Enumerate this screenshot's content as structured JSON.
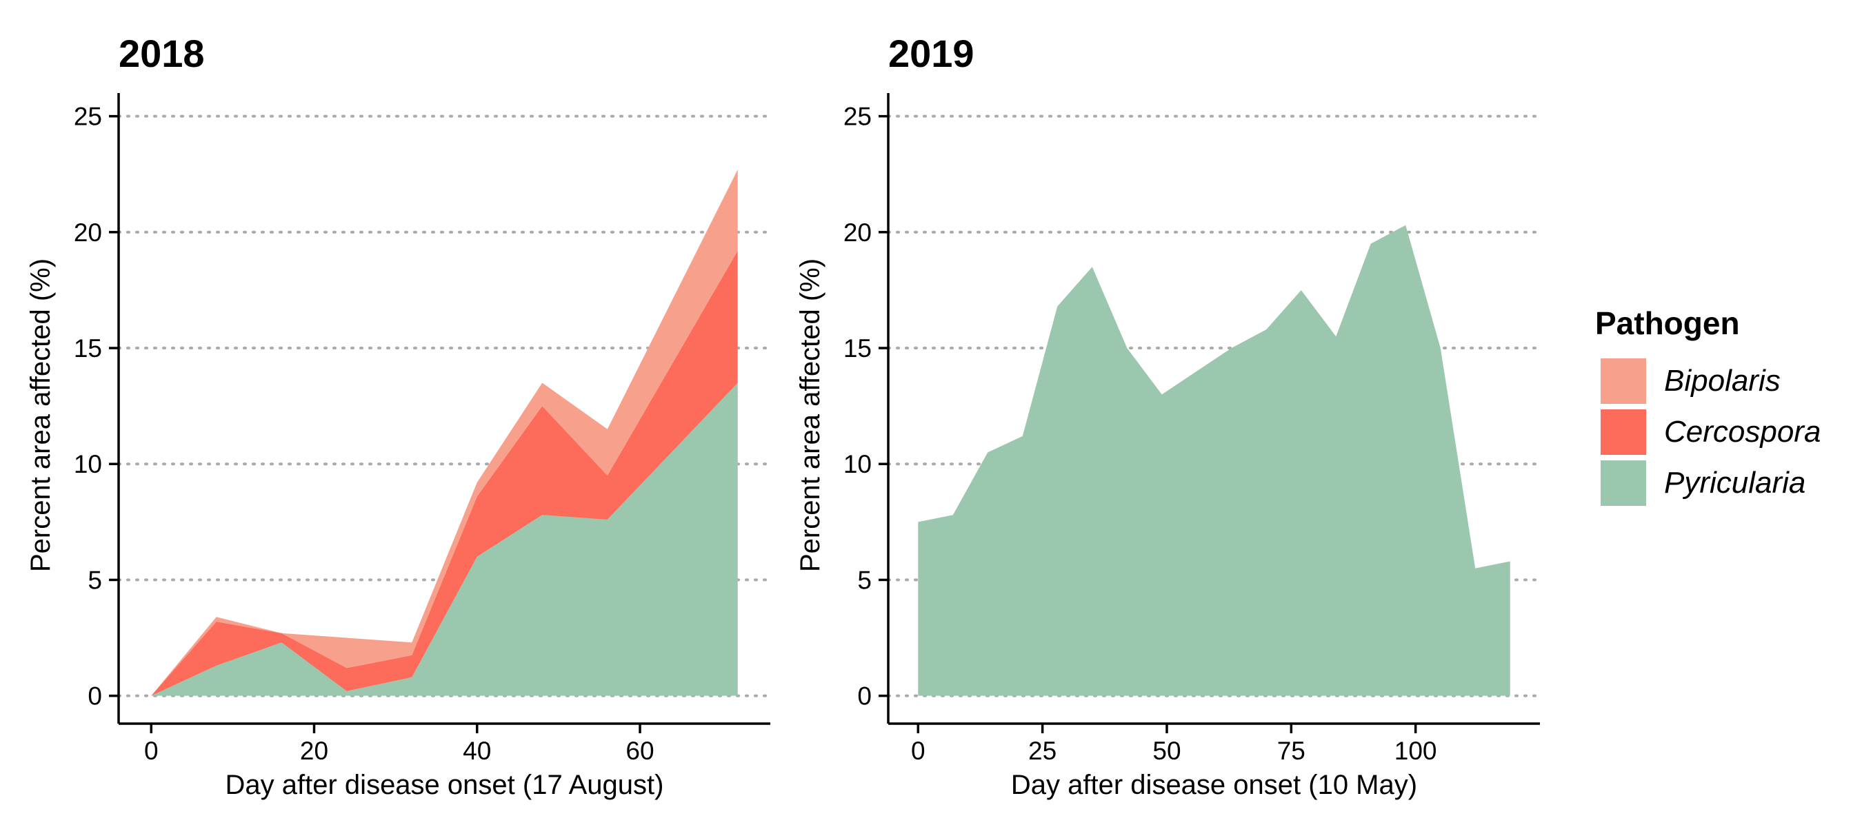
{
  "chart_data": [
    {
      "type": "area",
      "stacked": true,
      "title": "2018",
      "xlabel": "Day after disease onset (17 August)",
      "ylabel": "Percent area affected (%)",
      "xlim": [
        -4,
        76
      ],
      "ylim": [
        -1.2,
        26
      ],
      "xticks": [
        0,
        20,
        40,
        60
      ],
      "yticks": [
        0,
        5,
        10,
        15,
        20,
        25
      ],
      "grid": "horizontal dotted",
      "legend": "right",
      "x": [
        0,
        8,
        16,
        24,
        32,
        40,
        48,
        56,
        72
      ],
      "series": [
        {
          "name": "Pyricularia",
          "values": [
            0,
            1.3,
            2.3,
            0.2,
            0.8,
            6.0,
            7.8,
            7.6,
            13.5
          ]
        },
        {
          "name": "Cercospora",
          "values": [
            0,
            1.9,
            0.4,
            1.0,
            0.95,
            2.6,
            4.7,
            1.9,
            5.7
          ]
        },
        {
          "name": "Bipolaris",
          "values": [
            0,
            0.2,
            0.0,
            1.3,
            0.55,
            0.6,
            1.0,
            2.0,
            3.5
          ]
        }
      ]
    },
    {
      "type": "area",
      "stacked": true,
      "title": "2019",
      "xlabel": "Day after disease onset (10 May)",
      "ylabel": "Percent area affected (%)",
      "xlim": [
        -6,
        125
      ],
      "ylim": [
        -1.2,
        26
      ],
      "xticks": [
        0,
        25,
        50,
        75,
        100
      ],
      "yticks": [
        0,
        5,
        10,
        15,
        20,
        25
      ],
      "grid": "horizontal dotted",
      "legend": "right",
      "x": [
        0,
        7,
        14,
        21,
        28,
        35,
        42,
        49,
        56,
        63,
        70,
        77,
        84,
        91,
        98,
        105,
        112,
        119
      ],
      "series": [
        {
          "name": "Pyricularia",
          "values": [
            7.5,
            7.8,
            10.5,
            11.2,
            16.8,
            18.5,
            15.0,
            13.0,
            14.0,
            15.0,
            15.8,
            17.5,
            15.5,
            19.5,
            20.3,
            15.0,
            5.5,
            5.8
          ]
        },
        {
          "name": "Cercospora",
          "values": [
            0,
            0,
            0,
            0,
            0,
            0,
            0,
            0,
            0,
            0,
            0,
            0,
            0,
            0,
            0,
            0,
            0,
            0
          ]
        },
        {
          "name": "Bipolaris",
          "values": [
            0,
            0,
            0,
            0,
            0,
            0,
            0,
            0,
            0,
            0,
            0,
            0,
            0,
            0,
            0,
            0,
            0,
            0
          ]
        }
      ]
    }
  ],
  "legend": {
    "title": "Pathogen",
    "items": [
      {
        "name": "Bipolaris",
        "color": "#F7A08B"
      },
      {
        "name": "Cercospora",
        "color": "#FD6B5A"
      },
      {
        "name": "Pyricularia",
        "color": "#9BC7AE"
      }
    ]
  },
  "colors": {
    "Pyricularia": "#9BC7AE",
    "Cercospora": "#FD6B5A",
    "Bipolaris": "#F7A08B",
    "grid": "#AAAAAA",
    "axis": "#000000"
  }
}
